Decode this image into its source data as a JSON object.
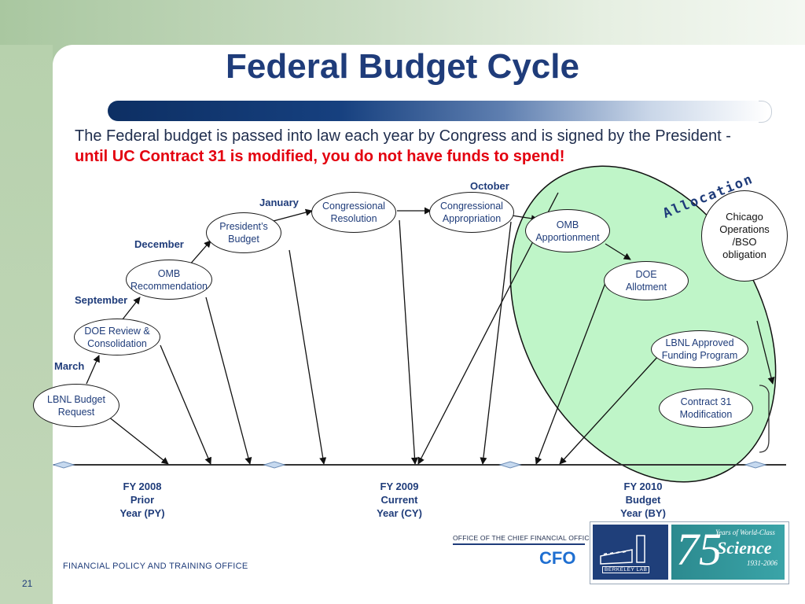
{
  "title": "Federal Budget Cycle",
  "intro": {
    "text": "The Federal budget is passed into law each year by Congress and is signed by the President - ",
    "emphasis": "until UC Contract 31 is modified, you do not have funds to spend!"
  },
  "months": {
    "march": "March",
    "september": "September",
    "december": "December",
    "january": "January",
    "october": "October"
  },
  "nodes": {
    "lbnl_budget_request": [
      "LBNL Budget",
      "Request"
    ],
    "doe_review": [
      "DOE Review &",
      "Consolidation"
    ],
    "omb_recommendation": [
      "OMB",
      "Recommendation"
    ],
    "presidents_budget": [
      "President’s",
      "Budget"
    ],
    "congressional_resolution": [
      "Congressional",
      "Resolution"
    ],
    "congressional_appropriation": [
      "Congressional",
      "Appropriation"
    ],
    "omb_apportionment": [
      "OMB",
      "Apportionment"
    ],
    "doe_allotment": [
      "DOE",
      "Allotment"
    ],
    "lbnl_approved": [
      "LBNL Approved",
      "Funding Program"
    ],
    "contract31": [
      "Contract 31",
      "Modification"
    ],
    "chicago": [
      "Chicago",
      "Operations",
      "/BSO",
      "obligation"
    ]
  },
  "allocation_label": "Allocation",
  "fiscal_years": [
    {
      "line1": "FY 2008",
      "line2": "Prior",
      "line3": "Year (PY)"
    },
    {
      "line1": "FY 2009",
      "line2": "Current",
      "line3": "Year (CY)"
    },
    {
      "line1": "FY 2010",
      "line2": "Budget",
      "line3": "Year (BY)"
    }
  ],
  "footer": {
    "office": "FINANCIAL POLICY AND TRAINING OFFICE",
    "page_number": "21",
    "cfo_heading": "OFFICE OF THE CHIEF FINANCIAL OFFICER",
    "cfo_word": "CFO",
    "lab_logo_text": "BERKELEY LAB",
    "anniv_number": "75",
    "anniv_line1": "Years of World-Class",
    "anniv_line2": "Science",
    "anniv_line3": "1931-2006"
  }
}
